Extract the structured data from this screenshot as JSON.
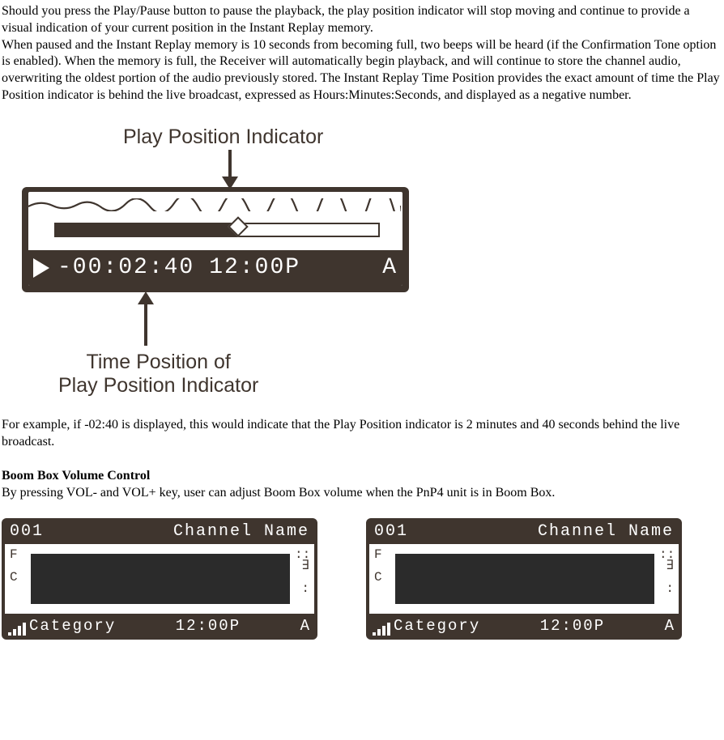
{
  "paragraphs": {
    "p1": "Should you press the Play/Pause button to pause the playback, the play position indicator will stop moving and continue to provide a visual indication of your current position in the Instant Replay memory.",
    "p2": "When paused and the Instant Replay memory is 10 seconds from becoming full, two beeps will be heard (if the Confirmation Tone option is enabled). When the memory is full, the Receiver will automatically begin playback, and will continue to store the channel audio, overwriting the oldest portion of the audio previously stored. The Instant Replay Time Position provides the exact amount of time the Play Position indicator is behind the live broadcast, expressed as Hours:Minutes:Seconds, and displayed as a negative number.",
    "p3": "For example, if -02:40 is displayed, this would indicate that the Play Position indicator is 2 minutes and 40 seconds behind the live broadcast.",
    "h1": "Boom Box Volume Control",
    "p4": "By pressing VOL- and VOL+ key, user can adjust Boom Box volume when the PnP4 unit is in Boom Box."
  },
  "diagram": {
    "label_top": "Play Position Indicator",
    "label_bottom_line1": "Time Position of",
    "label_bottom_line2": "Play Position Indicator",
    "readout_time_offset": "-00:02:40",
    "readout_clock": "12:00P",
    "readout_flag": "A",
    "progress_fill_pct": 57,
    "indicator_pos_pct": 57,
    "frame_color": "#3f352e",
    "text_color": "#3f352e"
  },
  "vol_lcd": {
    "channel_num": "001",
    "channel_name": "Channel Name",
    "category": "Category",
    "clock": "12:00P",
    "flag": "A",
    "signal_bars": [
      4,
      8,
      12,
      16
    ]
  }
}
